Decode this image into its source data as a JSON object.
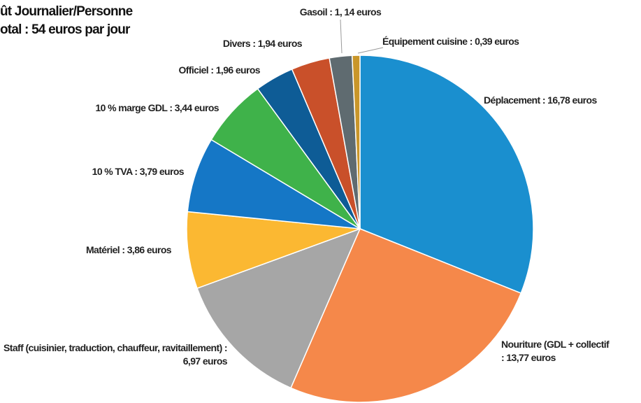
{
  "chart_data": {
    "type": "pie",
    "title": "ût Journalier/Personne",
    "subtitle": "otal : 54 euros par jour",
    "categories": [
      "Déplacement",
      "Nouriture (GDL + collectif",
      "Staff (cuisinier, traduction, chauffeur, ravitaillement)",
      "Matériel",
      "10 % TVA",
      "10 % marge GDL",
      "Officiel",
      "Divers",
      "Gasoil",
      "Équipement cuisine"
    ],
    "values": [
      16.78,
      13.77,
      6.97,
      3.86,
      3.79,
      3.44,
      1.96,
      1.94,
      1.14,
      0.39
    ],
    "value_labels": [
      "Déplacement : 16,78 euros",
      "Nouriture (GDL + collectif : 13,77 euros",
      "Staff (cuisinier, traduction, chauffeur, ravitaillement) : 6,97 euros",
      "Matériel : 3,86 euros",
      "10 % TVA : 3,79 euros",
      "10 % marge GDL : 3,44 euros",
      "Officiel : 1,96 euros",
      "Divers : 1,94 euros",
      "Gasoil : 1, 14 euros",
      "Équipement cuisine : 0,39 euros"
    ],
    "colors": [
      "#1a8fcf",
      "#f5884a",
      "#a6a6a6",
      "#fbb832",
      "#1577c6",
      "#3fb24a",
      "#0e5c96",
      "#c9502a",
      "#5f6b70",
      "#c9962a"
    ]
  }
}
